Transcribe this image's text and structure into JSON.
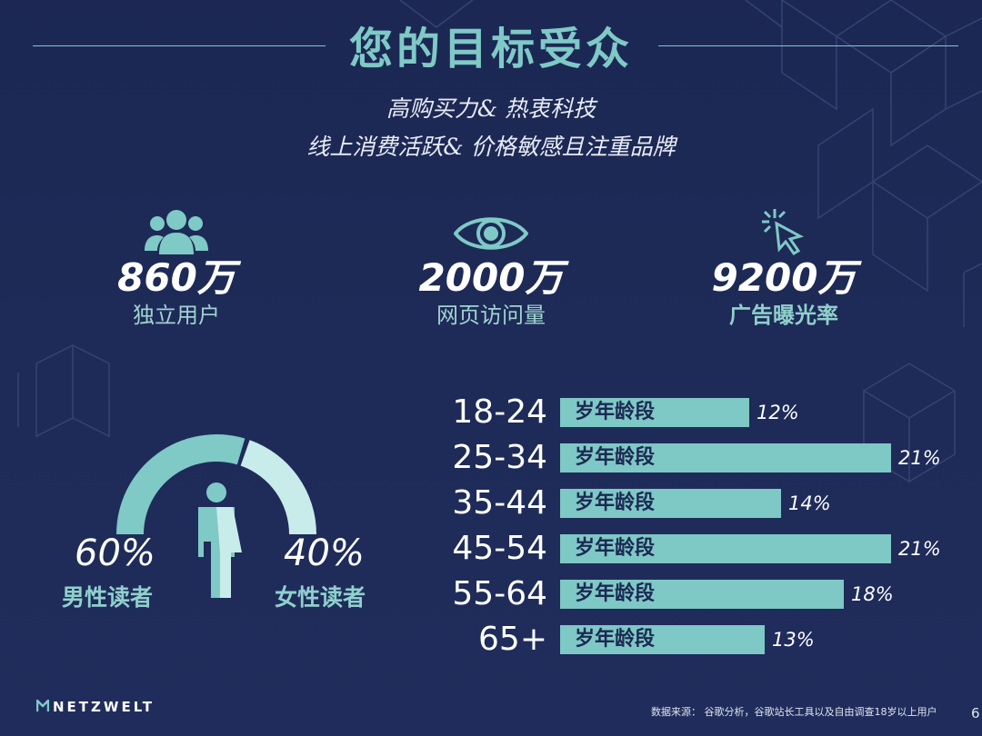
{
  "title": "您的目标受众",
  "subtitle_line1": "高购买力& 热衷科技",
  "subtitle_line2": "线上消费活跃& 价格敏感且注重品牌",
  "stats": [
    {
      "value": "860万",
      "label": "独立用户",
      "icon": "users-icon"
    },
    {
      "value": "2000万",
      "label": "网页访问量",
      "icon": "eye-icon"
    },
    {
      "value": "9200万",
      "label": "广告曝光率",
      "icon": "cursor-click-icon"
    }
  ],
  "gender": {
    "male_pct": "60%",
    "male_label": "男性读者",
    "female_pct": "40%",
    "female_label": "女性读者",
    "male_share": 0.6,
    "female_share": 0.4
  },
  "age": {
    "suffix": "岁年龄段",
    "rows": [
      {
        "range": "18-24",
        "value": 12,
        "pct": "12%"
      },
      {
        "range": "25-34",
        "value": 21,
        "pct": "21%"
      },
      {
        "range": "35-44",
        "value": 14,
        "pct": "14%"
      },
      {
        "range": "45-54",
        "value": 21,
        "pct": "21%"
      },
      {
        "range": "55-64",
        "value": 18,
        "pct": "18%"
      },
      {
        "range": "65+",
        "value": 13,
        "pct": "13%"
      }
    ]
  },
  "brand": "NETZWELT",
  "source": "数据来源： 谷歌分析，谷歌站长工具以及自由调查18岁以上用户",
  "page_number": "6",
  "colors": {
    "background": "#1e2a57",
    "accent": "#7fc9c6",
    "accent_light": "#c8ecea"
  }
}
